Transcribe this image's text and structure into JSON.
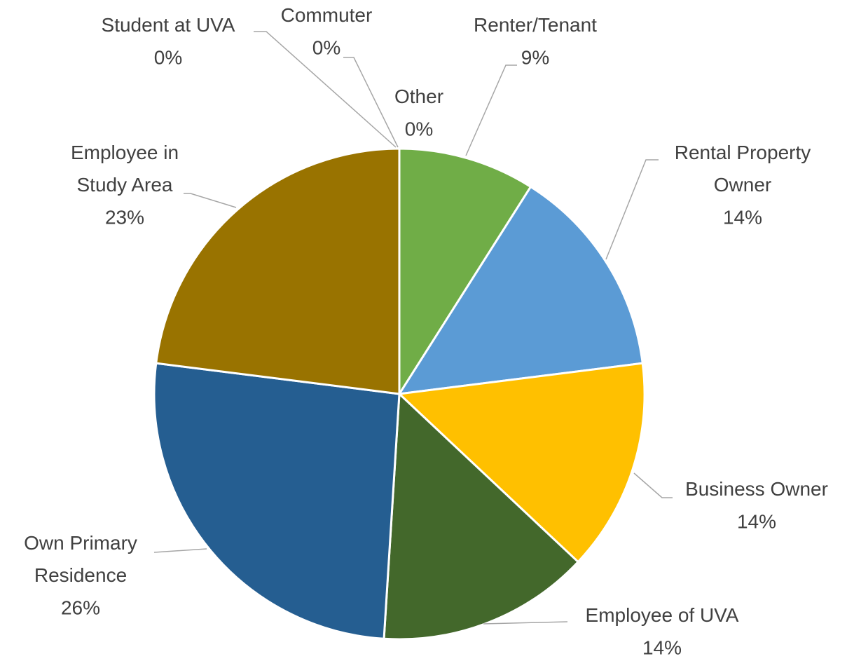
{
  "chart_data": {
    "type": "pie",
    "categories": [
      "Renter/Tenant",
      "Rental Property Owner",
      "Business Owner",
      "Employee of UVA",
      "Own Primary Residence",
      "Employee in Study Area",
      "Student at UVA",
      "Commuter",
      "Other"
    ],
    "values": [
      9,
      14,
      14,
      14,
      26,
      23,
      0,
      0,
      0
    ],
    "value_labels": [
      "9%",
      "14%",
      "14%",
      "14%",
      "26%",
      "23%",
      "0%",
      "0%",
      "0%"
    ],
    "colors": [
      "#70ad47",
      "#5b9bd5",
      "#ffc000",
      "#43682b",
      "#255e91",
      "#997300",
      "#a5a5a5",
      "#4472c4",
      "#ed7d31"
    ]
  }
}
